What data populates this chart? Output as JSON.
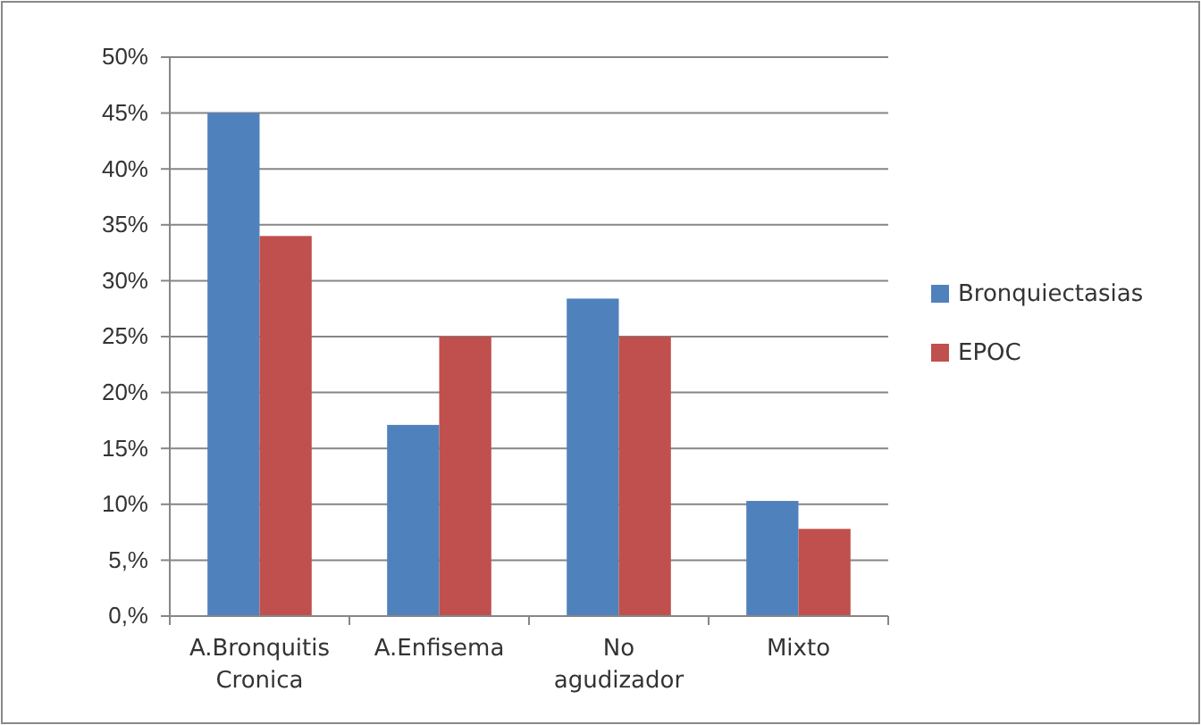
{
  "chart_data": {
    "type": "bar",
    "categories": [
      "A.Bronquitis Cronica",
      "A.Enfisema",
      "No agudizador",
      "Mixto"
    ],
    "series": [
      {
        "name": "Bronquiectasias",
        "color": "#4f81bd",
        "values": [
          45,
          17.1,
          28.4,
          10.3
        ]
      },
      {
        "name": "EPOC",
        "color": "#c0504d",
        "values": [
          34,
          25,
          25,
          7.8
        ]
      }
    ],
    "ylim": [
      0,
      50
    ],
    "yticks": [
      {
        "value": 0,
        "label": "0,%"
      },
      {
        "value": 5,
        "label": "5,%"
      },
      {
        "value": 10,
        "label": "10%"
      },
      {
        "value": 15,
        "label": "15%"
      },
      {
        "value": 20,
        "label": "20%"
      },
      {
        "value": 25,
        "label": "25%"
      },
      {
        "value": 30,
        "label": "30%"
      },
      {
        "value": 35,
        "label": "35%"
      },
      {
        "value": 40,
        "label": "40%"
      },
      {
        "value": 45,
        "label": "45%"
      },
      {
        "value": 50,
        "label": "50%"
      }
    ],
    "grid": "y",
    "legend": "right"
  }
}
